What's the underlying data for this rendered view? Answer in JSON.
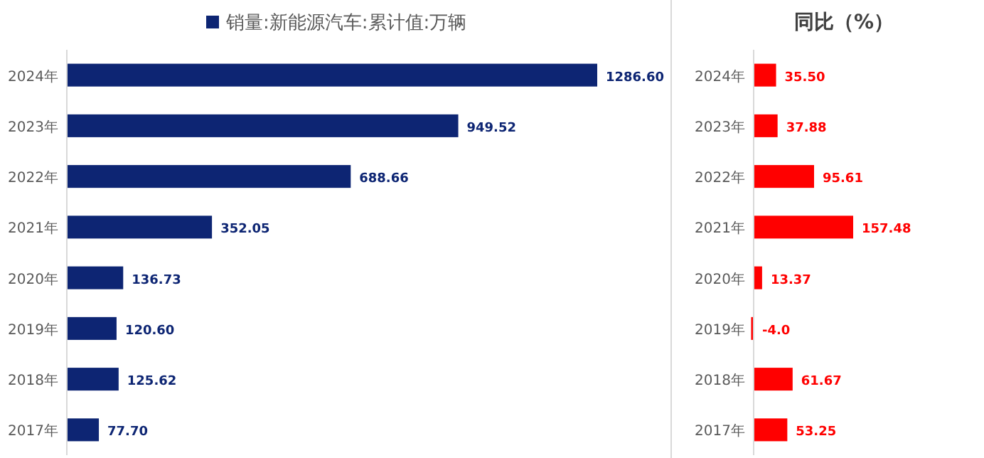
{
  "chart_data": [
    {
      "type": "bar",
      "orientation": "horizontal",
      "categories": [
        "2024年",
        "2023年",
        "2022年",
        "2021年",
        "2020年",
        "2019年",
        "2018年",
        "2017年"
      ],
      "series": [
        {
          "name": "销量:新能源汽车:累计值:万辆",
          "color": "#0d2573",
          "values": [
            1286.6,
            949.52,
            688.66,
            352.05,
            136.73,
            120.6,
            125.62,
            77.7
          ],
          "value_labels": [
            "1286.60",
            "949.52",
            "688.66",
            "352.05",
            "136.73",
            "120.60",
            "125.62",
            "77.70"
          ]
        }
      ],
      "legend": "top"
    },
    {
      "type": "bar",
      "orientation": "horizontal",
      "title": "同比（%）",
      "categories": [
        "2024年",
        "2023年",
        "2022年",
        "2021年",
        "2020年",
        "2019年",
        "2018年",
        "2017年"
      ],
      "series": [
        {
          "color": "#ff0000",
          "values": [
            35.5,
            37.88,
            95.61,
            157.48,
            13.37,
            -4.0,
            61.67,
            53.25
          ],
          "value_labels": [
            "35.50",
            "37.88",
            "95.61",
            "157.48",
            "13.37",
            "-4.0",
            "61.67",
            "53.25"
          ]
        }
      ]
    }
  ]
}
